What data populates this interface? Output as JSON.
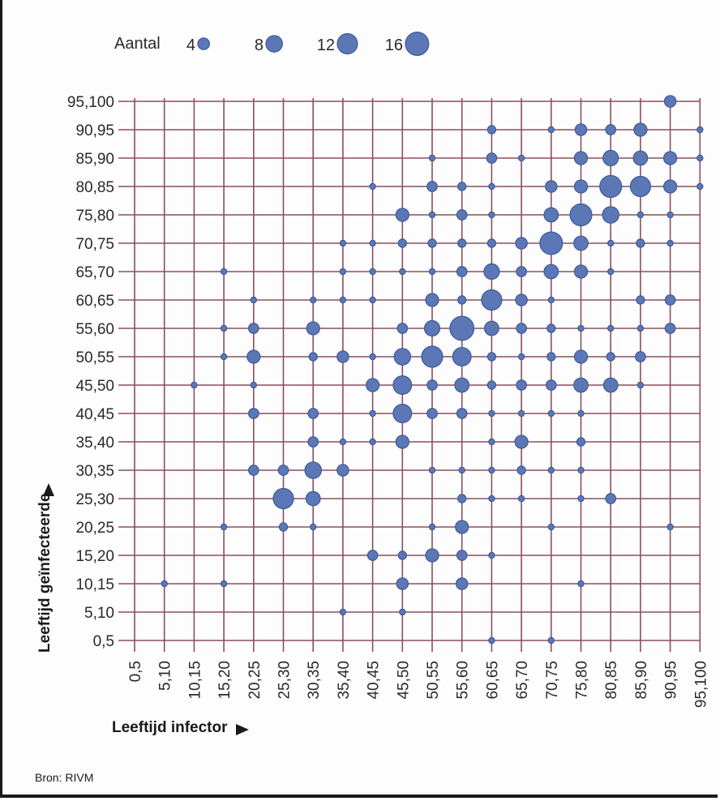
{
  "chart_data": {
    "type": "scatter",
    "subtype": "bubble",
    "categories": [
      "0,5",
      "5,10",
      "10,15",
      "15,20",
      "20,25",
      "25,30",
      "30,35",
      "35,40",
      "40,45",
      "45,50",
      "50,55",
      "55,60",
      "60,65",
      "65,70",
      "70,75",
      "75,80",
      "80,85",
      "85,90",
      "90,95",
      "95,100"
    ],
    "xlabel": "Leeftijd infector",
    "ylabel": "Leeftijd geïnfecteerde",
    "legend": {
      "title": "Aantal",
      "position": "top-left",
      "sizes": [
        {
          "label": "4",
          "value": 4
        },
        {
          "label": "8",
          "value": 8
        },
        {
          "label": "12",
          "value": 12
        },
        {
          "label": "16",
          "value": 16
        }
      ]
    },
    "colors": {
      "bubble": "#5b77b5",
      "bubble_stroke": "#3e5a98",
      "grid": "#8b4f5f"
    },
    "grid": true,
    "source": "Bron: RIVM",
    "points": [
      {
        "x": "90,95",
        "y": "95,100",
        "count": 4
      },
      {
        "x": "60,65",
        "y": "90,95",
        "count": 2
      },
      {
        "x": "70,75",
        "y": "90,95",
        "count": 1
      },
      {
        "x": "75,80",
        "y": "90,95",
        "count": 4
      },
      {
        "x": "80,85",
        "y": "90,95",
        "count": 3
      },
      {
        "x": "85,90",
        "y": "90,95",
        "count": 5
      },
      {
        "x": "95,100",
        "y": "90,95",
        "count": 1
      },
      {
        "x": "50,55",
        "y": "85,90",
        "count": 1
      },
      {
        "x": "60,65",
        "y": "85,90",
        "count": 3
      },
      {
        "x": "65,70",
        "y": "85,90",
        "count": 1
      },
      {
        "x": "75,80",
        "y": "85,90",
        "count": 5
      },
      {
        "x": "80,85",
        "y": "85,90",
        "count": 7
      },
      {
        "x": "85,90",
        "y": "85,90",
        "count": 6
      },
      {
        "x": "90,95",
        "y": "85,90",
        "count": 5
      },
      {
        "x": "95,100",
        "y": "85,90",
        "count": 1
      },
      {
        "x": "40,45",
        "y": "80,85",
        "count": 1
      },
      {
        "x": "50,55",
        "y": "80,85",
        "count": 3
      },
      {
        "x": "55,60",
        "y": "80,85",
        "count": 2
      },
      {
        "x": "60,65",
        "y": "80,85",
        "count": 1
      },
      {
        "x": "70,75",
        "y": "80,85",
        "count": 4
      },
      {
        "x": "75,80",
        "y": "80,85",
        "count": 5
      },
      {
        "x": "80,85",
        "y": "80,85",
        "count": 14
      },
      {
        "x": "85,90",
        "y": "80,85",
        "count": 12
      },
      {
        "x": "90,95",
        "y": "80,85",
        "count": 5
      },
      {
        "x": "95,100",
        "y": "80,85",
        "count": 1
      },
      {
        "x": "45,50",
        "y": "75,80",
        "count": 5
      },
      {
        "x": "50,55",
        "y": "75,80",
        "count": 1
      },
      {
        "x": "55,60",
        "y": "75,80",
        "count": 3
      },
      {
        "x": "60,65",
        "y": "75,80",
        "count": 1
      },
      {
        "x": "70,75",
        "y": "75,80",
        "count": 6
      },
      {
        "x": "75,80",
        "y": "75,80",
        "count": 14
      },
      {
        "x": "80,85",
        "y": "75,80",
        "count": 8
      },
      {
        "x": "85,90",
        "y": "75,80",
        "count": 1
      },
      {
        "x": "90,95",
        "y": "75,80",
        "count": 1
      },
      {
        "x": "35,40",
        "y": "70,75",
        "count": 1
      },
      {
        "x": "40,45",
        "y": "70,75",
        "count": 1
      },
      {
        "x": "45,50",
        "y": "70,75",
        "count": 2
      },
      {
        "x": "50,55",
        "y": "70,75",
        "count": 2
      },
      {
        "x": "55,60",
        "y": "70,75",
        "count": 2
      },
      {
        "x": "60,65",
        "y": "70,75",
        "count": 2
      },
      {
        "x": "65,70",
        "y": "70,75",
        "count": 4
      },
      {
        "x": "70,75",
        "y": "70,75",
        "count": 15
      },
      {
        "x": "75,80",
        "y": "70,75",
        "count": 6
      },
      {
        "x": "80,85",
        "y": "70,75",
        "count": 1
      },
      {
        "x": "85,90",
        "y": "70,75",
        "count": 2
      },
      {
        "x": "90,95",
        "y": "70,75",
        "count": 1
      },
      {
        "x": "15,20",
        "y": "65,70",
        "count": 1
      },
      {
        "x": "35,40",
        "y": "65,70",
        "count": 1
      },
      {
        "x": "40,45",
        "y": "65,70",
        "count": 1
      },
      {
        "x": "45,50",
        "y": "65,70",
        "count": 1
      },
      {
        "x": "50,55",
        "y": "65,70",
        "count": 1
      },
      {
        "x": "55,60",
        "y": "65,70",
        "count": 3
      },
      {
        "x": "60,65",
        "y": "65,70",
        "count": 7
      },
      {
        "x": "65,70",
        "y": "65,70",
        "count": 3
      },
      {
        "x": "70,75",
        "y": "65,70",
        "count": 6
      },
      {
        "x": "75,80",
        "y": "65,70",
        "count": 5
      },
      {
        "x": "80,85",
        "y": "65,70",
        "count": 1
      },
      {
        "x": "20,25",
        "y": "60,65",
        "count": 1
      },
      {
        "x": "30,35",
        "y": "60,65",
        "count": 1
      },
      {
        "x": "35,40",
        "y": "60,65",
        "count": 1
      },
      {
        "x": "40,45",
        "y": "60,65",
        "count": 1
      },
      {
        "x": "50,55",
        "y": "60,65",
        "count": 5
      },
      {
        "x": "55,60",
        "y": "60,65",
        "count": 2
      },
      {
        "x": "60,65",
        "y": "60,65",
        "count": 12
      },
      {
        "x": "65,70",
        "y": "60,65",
        "count": 4
      },
      {
        "x": "70,75",
        "y": "60,65",
        "count": 1
      },
      {
        "x": "85,90",
        "y": "60,65",
        "count": 2
      },
      {
        "x": "90,95",
        "y": "60,65",
        "count": 3
      },
      {
        "x": "15,20",
        "y": "55,60",
        "count": 1
      },
      {
        "x": "20,25",
        "y": "55,60",
        "count": 3
      },
      {
        "x": "30,35",
        "y": "55,60",
        "count": 5
      },
      {
        "x": "45,50",
        "y": "55,60",
        "count": 3
      },
      {
        "x": "50,55",
        "y": "55,60",
        "count": 7
      },
      {
        "x": "55,60",
        "y": "55,60",
        "count": 17
      },
      {
        "x": "60,65",
        "y": "55,60",
        "count": 6
      },
      {
        "x": "65,70",
        "y": "55,60",
        "count": 3
      },
      {
        "x": "70,75",
        "y": "55,60",
        "count": 2
      },
      {
        "x": "75,80",
        "y": "55,60",
        "count": 1
      },
      {
        "x": "80,85",
        "y": "55,60",
        "count": 1
      },
      {
        "x": "85,90",
        "y": "55,60",
        "count": 1
      },
      {
        "x": "90,95",
        "y": "55,60",
        "count": 3
      },
      {
        "x": "15,20",
        "y": "50,55",
        "count": 1
      },
      {
        "x": "20,25",
        "y": "50,55",
        "count": 5
      },
      {
        "x": "30,35",
        "y": "50,55",
        "count": 2
      },
      {
        "x": "35,40",
        "y": "50,55",
        "count": 4
      },
      {
        "x": "40,45",
        "y": "50,55",
        "count": 1
      },
      {
        "x": "45,50",
        "y": "50,55",
        "count": 8
      },
      {
        "x": "50,55",
        "y": "50,55",
        "count": 13
      },
      {
        "x": "55,60",
        "y": "50,55",
        "count": 10
      },
      {
        "x": "60,65",
        "y": "50,55",
        "count": 2
      },
      {
        "x": "65,70",
        "y": "50,55",
        "count": 1
      },
      {
        "x": "70,75",
        "y": "50,55",
        "count": 2
      },
      {
        "x": "75,80",
        "y": "50,55",
        "count": 5
      },
      {
        "x": "80,85",
        "y": "50,55",
        "count": 2
      },
      {
        "x": "85,90",
        "y": "50,55",
        "count": 3
      },
      {
        "x": "10,15",
        "y": "45,50",
        "count": 1
      },
      {
        "x": "20,25",
        "y": "45,50",
        "count": 1
      },
      {
        "x": "40,45",
        "y": "45,50",
        "count": 5
      },
      {
        "x": "45,50",
        "y": "45,50",
        "count": 10
      },
      {
        "x": "50,55",
        "y": "45,50",
        "count": 3
      },
      {
        "x": "55,60",
        "y": "45,50",
        "count": 6
      },
      {
        "x": "60,65",
        "y": "45,50",
        "count": 2
      },
      {
        "x": "65,70",
        "y": "45,50",
        "count": 3
      },
      {
        "x": "70,75",
        "y": "45,50",
        "count": 3
      },
      {
        "x": "75,80",
        "y": "45,50",
        "count": 6
      },
      {
        "x": "80,85",
        "y": "45,50",
        "count": 6
      },
      {
        "x": "85,90",
        "y": "45,50",
        "count": 1
      },
      {
        "x": "20,25",
        "y": "40,45",
        "count": 3
      },
      {
        "x": "30,35",
        "y": "40,45",
        "count": 3
      },
      {
        "x": "40,45",
        "y": "40,45",
        "count": 1
      },
      {
        "x": "45,50",
        "y": "40,45",
        "count": 10
      },
      {
        "x": "50,55",
        "y": "40,45",
        "count": 3
      },
      {
        "x": "55,60",
        "y": "40,45",
        "count": 3
      },
      {
        "x": "60,65",
        "y": "40,45",
        "count": 1
      },
      {
        "x": "65,70",
        "y": "40,45",
        "count": 1
      },
      {
        "x": "70,75",
        "y": "40,45",
        "count": 1
      },
      {
        "x": "75,80",
        "y": "40,45",
        "count": 1
      },
      {
        "x": "30,35",
        "y": "35,40",
        "count": 3
      },
      {
        "x": "35,40",
        "y": "35,40",
        "count": 1
      },
      {
        "x": "40,45",
        "y": "35,40",
        "count": 1
      },
      {
        "x": "45,50",
        "y": "35,40",
        "count": 5
      },
      {
        "x": "60,65",
        "y": "35,40",
        "count": 1
      },
      {
        "x": "65,70",
        "y": "35,40",
        "count": 5
      },
      {
        "x": "75,80",
        "y": "35,40",
        "count": 2
      },
      {
        "x": "20,25",
        "y": "30,35",
        "count": 3
      },
      {
        "x": "25,30",
        "y": "30,35",
        "count": 3
      },
      {
        "x": "30,35",
        "y": "30,35",
        "count": 8
      },
      {
        "x": "35,40",
        "y": "30,35",
        "count": 4
      },
      {
        "x": "50,55",
        "y": "30,35",
        "count": 1
      },
      {
        "x": "55,60",
        "y": "30,35",
        "count": 1
      },
      {
        "x": "60,65",
        "y": "30,35",
        "count": 1
      },
      {
        "x": "65,70",
        "y": "30,35",
        "count": 2
      },
      {
        "x": "70,75",
        "y": "30,35",
        "count": 1
      },
      {
        "x": "75,80",
        "y": "30,35",
        "count": 1
      },
      {
        "x": "25,30",
        "y": "25,30",
        "count": 12
      },
      {
        "x": "30,35",
        "y": "25,30",
        "count": 6
      },
      {
        "x": "55,60",
        "y": "25,30",
        "count": 2
      },
      {
        "x": "60,65",
        "y": "25,30",
        "count": 1
      },
      {
        "x": "65,70",
        "y": "25,30",
        "count": 1
      },
      {
        "x": "75,80",
        "y": "25,30",
        "count": 1
      },
      {
        "x": "80,85",
        "y": "25,30",
        "count": 3
      },
      {
        "x": "15,20",
        "y": "20,25",
        "count": 1
      },
      {
        "x": "25,30",
        "y": "20,25",
        "count": 2
      },
      {
        "x": "30,35",
        "y": "20,25",
        "count": 1
      },
      {
        "x": "50,55",
        "y": "20,25",
        "count": 1
      },
      {
        "x": "55,60",
        "y": "20,25",
        "count": 5
      },
      {
        "x": "70,75",
        "y": "20,25",
        "count": 1
      },
      {
        "x": "90,95",
        "y": "20,25",
        "count": 1
      },
      {
        "x": "40,45",
        "y": "15,20",
        "count": 3
      },
      {
        "x": "45,50",
        "y": "15,20",
        "count": 2
      },
      {
        "x": "50,55",
        "y": "15,20",
        "count": 5
      },
      {
        "x": "55,60",
        "y": "15,20",
        "count": 3
      },
      {
        "x": "60,65",
        "y": "15,20",
        "count": 1
      },
      {
        "x": "5,10",
        "y": "10,15",
        "count": 1
      },
      {
        "x": "15,20",
        "y": "10,15",
        "count": 1
      },
      {
        "x": "45,50",
        "y": "10,15",
        "count": 4
      },
      {
        "x": "55,60",
        "y": "10,15",
        "count": 4
      },
      {
        "x": "75,80",
        "y": "10,15",
        "count": 1
      },
      {
        "x": "35,40",
        "y": "5,10",
        "count": 1
      },
      {
        "x": "45,50",
        "y": "5,10",
        "count": 1
      },
      {
        "x": "60,65",
        "y": "0,5",
        "count": 1
      },
      {
        "x": "70,75",
        "y": "0,5",
        "count": 1
      }
    ]
  }
}
